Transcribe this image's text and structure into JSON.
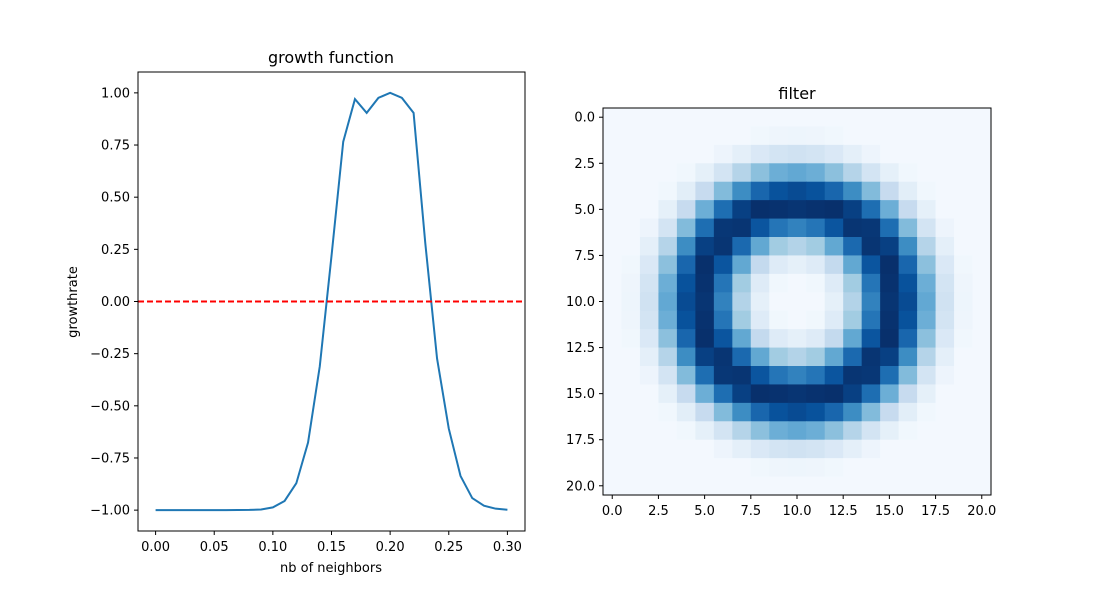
{
  "chart_data": [
    {
      "type": "line",
      "title": "growth function",
      "xlabel": "nb of neighbors",
      "ylabel": "growthrate",
      "xlim": [
        -0.015,
        0.315
      ],
      "ylim": [
        -1.1,
        1.1
      ],
      "xticks": [
        "0.00",
        "0.05",
        "0.10",
        "0.15",
        "0.20",
        "0.25",
        "0.30"
      ],
      "yticks": [
        "1.00",
        "0.75",
        "0.50",
        "0.25",
        "0.00",
        "−0.25",
        "−0.50",
        "−0.75",
        "−1.00"
      ],
      "series": [
        {
          "color": "#1f77b4",
          "x": [
            0.0,
            0.02,
            0.04,
            0.06,
            0.08,
            0.09,
            0.1,
            0.11,
            0.12,
            0.13,
            0.14,
            0.15,
            0.16,
            0.17,
            0.18,
            0.19,
            0.2,
            0.21,
            0.22,
            0.23,
            0.24,
            0.25,
            0.26,
            0.27,
            0.28,
            0.29,
            0.3
          ],
          "y": [
            -1.0,
            -1.0,
            -1.0,
            -1.0,
            -0.999,
            -0.997,
            -0.987,
            -0.956,
            -0.871,
            -0.676,
            -0.311,
            0.218,
            0.766,
            0.97,
            0.904,
            0.976,
            1.0,
            0.976,
            0.904,
            0.278,
            -0.273,
            -0.609,
            -0.836,
            -0.942,
            -0.979,
            -0.993,
            -0.998
          ]
        },
        {
          "color": "#ff0000",
          "style": "dashed",
          "x": [
            -0.015,
            0.315
          ],
          "y": [
            0.0,
            0.0
          ]
        }
      ]
    },
    {
      "type": "heatmap",
      "title": "filter",
      "colormap": "Blues",
      "xlim": [
        -0.5,
        20.5
      ],
      "ylim": [
        20.5,
        -0.5
      ],
      "xticks": [
        "0.0",
        "2.5",
        "5.0",
        "7.5",
        "10.0",
        "12.5",
        "15.0",
        "17.5",
        "20.0"
      ],
      "yticks": [
        "0.0",
        "2.5",
        "5.0",
        "7.5",
        "10.0",
        "12.5",
        "15.0",
        "17.5",
        "20.0"
      ],
      "grid_size": 21,
      "ring": {
        "center": 10,
        "radius": 5.3,
        "width": 1.5,
        "min": 0.02
      }
    }
  ]
}
